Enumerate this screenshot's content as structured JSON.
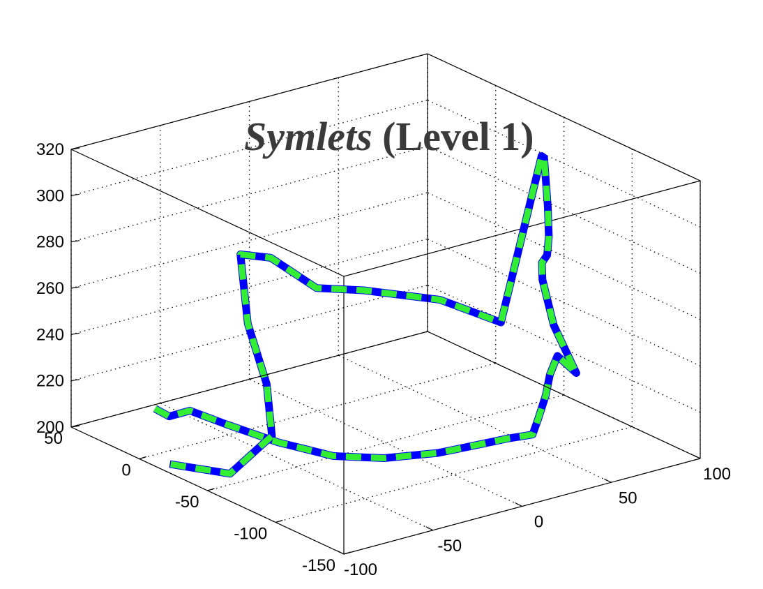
{
  "chart_data": {
    "type": "line3d",
    "title": {
      "italic": "Symlets",
      "rest": " (Level 1)"
    },
    "axes": {
      "x": {
        "ticks": [
          -100,
          -50,
          0,
          50,
          100
        ],
        "range": [
          -100,
          100
        ]
      },
      "y": {
        "ticks": [
          -150,
          -100,
          -50,
          0,
          50
        ],
        "range": [
          -150,
          50
        ]
      },
      "z": {
        "ticks": [
          200,
          220,
          240,
          260,
          280,
          300,
          320
        ],
        "range": [
          200,
          320
        ]
      }
    },
    "grid": true,
    "box": true,
    "series": [
      {
        "style": "solid",
        "color": "#0000ff"
      },
      {
        "style": "dashed",
        "color": "#33ee33"
      }
    ],
    "trajectory_approx": [
      [
        -118,
        -35,
        235
      ],
      [
        -110,
        -35,
        230
      ],
      [
        -100,
        -37,
        231
      ],
      [
        -85,
        -45,
        224
      ],
      [
        -68,
        -60,
        217
      ],
      [
        -50,
        -77,
        212
      ],
      [
        -30,
        -88,
        210
      ],
      [
        -5,
        -95,
        209
      ],
      [
        20,
        -93,
        207
      ],
      [
        38,
        -90,
        205
      ],
      [
        48,
        -95,
        206
      ],
      [
        55,
        -90,
        210
      ],
      [
        63,
        -85,
        217
      ],
      [
        70,
        -79,
        223
      ],
      [
        78,
        -74,
        228
      ],
      [
        84,
        -80,
        221
      ],
      [
        79,
        -70,
        240
      ],
      [
        78,
        -63,
        258
      ],
      [
        80,
        -60,
        264
      ],
      [
        86,
        -56,
        265
      ],
      [
        90,
        -52,
        271
      ],
      [
        91,
        -50,
        283
      ],
      [
        92,
        -46,
        303
      ],
      [
        89,
        -48,
        305
      ],
      [
        80,
        -30,
        230
      ],
      [
        65,
        -5,
        236
      ],
      [
        45,
        25,
        236
      ],
      [
        30,
        40,
        236
      ],
      [
        12,
        50,
        250
      ],
      [
        -5,
        50,
        255
      ],
      [
        -20,
        25,
        235
      ],
      [
        -40,
        -15,
        224
      ],
      [
        -60,
        -45,
        214
      ],
      [
        -95,
        -60,
        209
      ],
      [
        -125,
        -55,
        218
      ]
    ]
  }
}
